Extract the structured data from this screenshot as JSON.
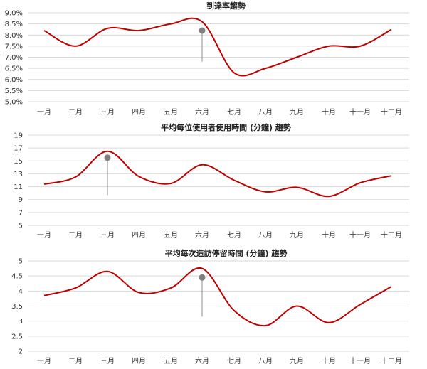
{
  "colors": {
    "line": "#c00000",
    "grid": "#d9d9d9",
    "marker": "#7f7f7f",
    "text": "#333333"
  },
  "chart_data": [
    {
      "type": "line",
      "title": "到達率趨勢",
      "categories": [
        "一月",
        "二月",
        "三月",
        "四月",
        "五月",
        "六月",
        "七月",
        "八月",
        "九月",
        "十月",
        "十一月",
        "十二月"
      ],
      "values": [
        8.2,
        7.5,
        8.3,
        8.2,
        8.5,
        8.6,
        6.3,
        6.5,
        7.0,
        7.5,
        7.5,
        8.25
      ],
      "yticks": [
        "5.0%",
        "5.5%",
        "6.0%",
        "6.5%",
        "7.0%",
        "7.5%",
        "8.0%",
        "8.5%",
        "9.0%"
      ],
      "ylim": [
        5.0,
        9.0
      ],
      "grid": true,
      "marker": {
        "category_index": 5,
        "y_top": 8.2,
        "y_bottom": 6.8
      }
    },
    {
      "type": "line",
      "title": "平均每位使用者使用時間 (分鐘) 趨勢",
      "categories": [
        "一月",
        "二月",
        "三月",
        "四月",
        "五月",
        "六月",
        "七月",
        "八月",
        "九月",
        "十月",
        "十一月",
        "十二月"
      ],
      "values": [
        11.4,
        12.5,
        16.5,
        12.6,
        11.5,
        14.4,
        12.0,
        10.2,
        10.9,
        9.5,
        11.6,
        12.7
      ],
      "yticks": [
        "5",
        "7",
        "9",
        "11",
        "13",
        "15",
        "17",
        "19"
      ],
      "ylim": [
        5,
        19
      ],
      "grid": true,
      "marker": {
        "category_index": 2,
        "y_top": 15.5,
        "y_bottom": 9.7
      }
    },
    {
      "type": "line",
      "title": "平均每次造訪停留時間 (分鐘) 趨勢",
      "categories": [
        "一月",
        "二月",
        "三月",
        "四月",
        "五月",
        "六月",
        "七月",
        "八月",
        "九月",
        "十月",
        "十一月",
        "十二月"
      ],
      "values": [
        3.85,
        4.1,
        4.65,
        3.95,
        4.1,
        4.75,
        3.35,
        2.85,
        3.5,
        2.95,
        3.55,
        4.15
      ],
      "yticks": [
        "2",
        "2.5",
        "3",
        "3.5",
        "4",
        "4.5",
        "5"
      ],
      "ylim": [
        2,
        5
      ],
      "grid": true,
      "marker": {
        "category_index": 5,
        "y_top": 4.45,
        "y_bottom": 3.15
      }
    }
  ]
}
